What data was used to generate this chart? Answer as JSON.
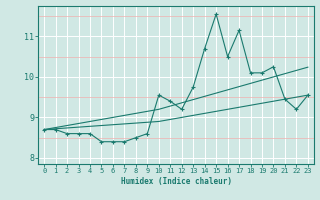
{
  "x": [
    0,
    1,
    2,
    3,
    4,
    5,
    6,
    7,
    8,
    9,
    10,
    11,
    12,
    13,
    14,
    15,
    16,
    17,
    18,
    19,
    20,
    21,
    22,
    23
  ],
  "y_main": [
    8.7,
    8.7,
    8.6,
    8.6,
    8.6,
    8.4,
    8.4,
    8.4,
    8.5,
    8.6,
    9.55,
    9.4,
    9.2,
    9.75,
    10.7,
    11.55,
    10.5,
    11.15,
    10.1,
    10.1,
    10.25,
    9.45,
    9.2,
    9.55
  ],
  "y_trend1": [
    8.7,
    8.75,
    8.8,
    8.85,
    8.9,
    8.95,
    9.0,
    9.05,
    9.1,
    9.15,
    9.2,
    9.28,
    9.36,
    9.44,
    9.52,
    9.6,
    9.68,
    9.76,
    9.84,
    9.92,
    10.0,
    10.08,
    10.16,
    10.24
  ],
  "y_trend2": [
    8.7,
    8.72,
    8.74,
    8.76,
    8.78,
    8.8,
    8.82,
    8.84,
    8.86,
    8.88,
    8.9,
    8.95,
    9.0,
    9.05,
    9.1,
    9.15,
    9.2,
    9.25,
    9.3,
    9.35,
    9.4,
    9.45,
    9.5,
    9.55
  ],
  "line_color": "#1a7a6e",
  "bg_color": "#d0e8e4",
  "white_grid_color": "#ffffff",
  "pink_grid_color": "#f0b0b0",
  "xlabel": "Humidex (Indice chaleur)",
  "xlim": [
    -0.5,
    23.5
  ],
  "ylim": [
    7.85,
    11.75
  ],
  "yticks": [
    8,
    9,
    10,
    11
  ],
  "xticks": [
    0,
    1,
    2,
    3,
    4,
    5,
    6,
    7,
    8,
    9,
    10,
    11,
    12,
    13,
    14,
    15,
    16,
    17,
    18,
    19,
    20,
    21,
    22,
    23
  ],
  "figsize": [
    3.2,
    2.0
  ],
  "dpi": 100
}
